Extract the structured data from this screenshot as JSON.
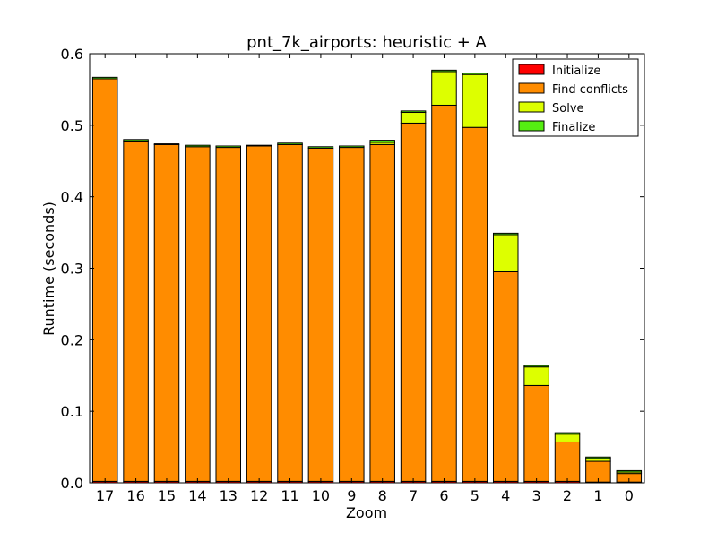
{
  "chart_data": {
    "type": "bar",
    "stacked": true,
    "title": "pnt_7k_airports: heuristic + A",
    "xlabel": "Zoom",
    "ylabel": "Runtime (seconds)",
    "ylim": [
      0,
      0.6
    ],
    "yticks": [
      "0.0",
      "0.1",
      "0.2",
      "0.3",
      "0.4",
      "0.5",
      "0.6"
    ],
    "categories": [
      "17",
      "16",
      "15",
      "14",
      "13",
      "12",
      "11",
      "10",
      "9",
      "8",
      "7",
      "6",
      "5",
      "4",
      "3",
      "2",
      "1",
      "0"
    ],
    "legend_position": "top-right",
    "grid": false,
    "series": [
      {
        "name": "Initialize",
        "color": "#ff0000",
        "values": [
          0.002,
          0.002,
          0.002,
          0.002,
          0.002,
          0.002,
          0.002,
          0.002,
          0.002,
          0.002,
          0.002,
          0.002,
          0.002,
          0.002,
          0.002,
          0.002,
          0.001,
          0.001
        ]
      },
      {
        "name": "Find conflicts",
        "color": "#ff8c00",
        "values": [
          0.563,
          0.476,
          0.471,
          0.468,
          0.467,
          0.469,
          0.471,
          0.466,
          0.467,
          0.471,
          0.501,
          0.526,
          0.495,
          0.293,
          0.134,
          0.055,
          0.029,
          0.012
        ]
      },
      {
        "name": "Solve",
        "color": "#ddff00",
        "values": [
          0.0,
          0.0,
          0.0,
          0.0,
          0.0,
          0.0,
          0.0,
          0.0,
          0.0,
          0.003,
          0.015,
          0.047,
          0.074,
          0.052,
          0.026,
          0.011,
          0.004,
          0.002
        ]
      },
      {
        "name": "Finalize",
        "color": "#55ee11",
        "values": [
          0.002,
          0.002,
          0.001,
          0.002,
          0.002,
          0.001,
          0.002,
          0.002,
          0.002,
          0.003,
          0.002,
          0.002,
          0.002,
          0.002,
          0.002,
          0.002,
          0.002,
          0.002
        ]
      }
    ]
  }
}
